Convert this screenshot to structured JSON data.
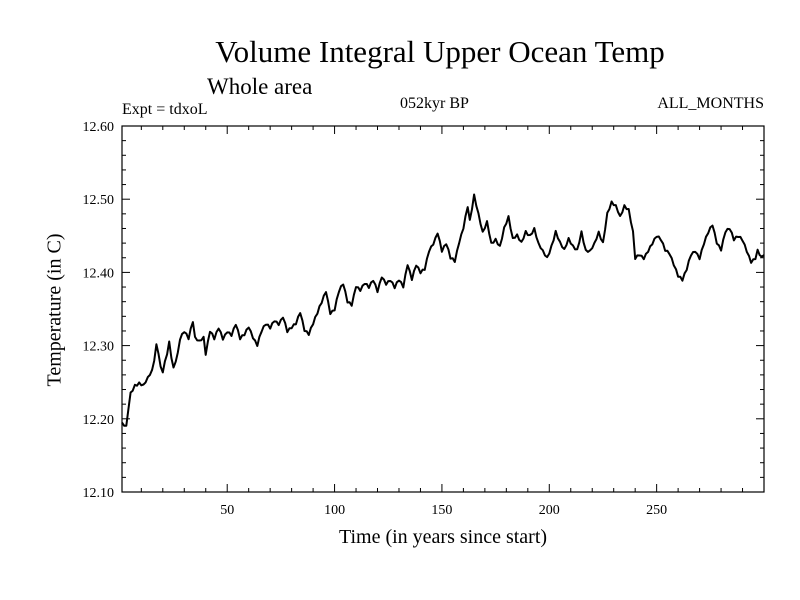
{
  "chart_data": {
    "type": "line",
    "title": "Volume Integral Upper Ocean Temp",
    "subtitle": "Whole area",
    "annotations": {
      "left": "Expt = tdxoL",
      "center": "052kyr BP",
      "right": "ALL_MONTHS"
    },
    "xlabel": "Time (in years since start)",
    "ylabel": "Temperature (in C)",
    "xlim": [
      1,
      300
    ],
    "ylim": [
      12.1,
      12.6
    ],
    "xticks": [
      50,
      100,
      150,
      200,
      250
    ],
    "yticks": [
      "12.10",
      "12.20",
      "12.30",
      "12.40",
      "12.50",
      "12.60"
    ],
    "grid": false,
    "series": [
      {
        "keypoints": [
          [
            1,
            12.195
          ],
          [
            3,
            12.19
          ],
          [
            4,
            12.215
          ],
          [
            5,
            12.235
          ],
          [
            7,
            12.245
          ],
          [
            9,
            12.248
          ],
          [
            11,
            12.245
          ],
          [
            13,
            12.255
          ],
          [
            15,
            12.265
          ],
          [
            16,
            12.28
          ],
          [
            17,
            12.3
          ],
          [
            18,
            12.29
          ],
          [
            19,
            12.27
          ],
          [
            20,
            12.265
          ],
          [
            22,
            12.29
          ],
          [
            23,
            12.305
          ],
          [
            24,
            12.285
          ],
          [
            25,
            12.27
          ],
          [
            27,
            12.29
          ],
          [
            28,
            12.31
          ],
          [
            30,
            12.32
          ],
          [
            32,
            12.31
          ],
          [
            34,
            12.333
          ],
          [
            35,
            12.31
          ],
          [
            37,
            12.305
          ],
          [
            39,
            12.31
          ],
          [
            40,
            12.288
          ],
          [
            42,
            12.32
          ],
          [
            44,
            12.31
          ],
          [
            46,
            12.325
          ],
          [
            48,
            12.31
          ],
          [
            50,
            12.32
          ],
          [
            52,
            12.315
          ],
          [
            54,
            12.33
          ],
          [
            56,
            12.31
          ],
          [
            58,
            12.315
          ],
          [
            60,
            12.325
          ],
          [
            62,
            12.31
          ],
          [
            64,
            12.3
          ],
          [
            66,
            12.32
          ],
          [
            68,
            12.33
          ],
          [
            70,
            12.325
          ],
          [
            72,
            12.335
          ],
          [
            74,
            12.33
          ],
          [
            76,
            12.34
          ],
          [
            78,
            12.32
          ],
          [
            80,
            12.325
          ],
          [
            82,
            12.33
          ],
          [
            84,
            12.345
          ],
          [
            86,
            12.32
          ],
          [
            88,
            12.315
          ],
          [
            90,
            12.33
          ],
          [
            92,
            12.345
          ],
          [
            94,
            12.36
          ],
          [
            96,
            12.375
          ],
          [
            98,
            12.345
          ],
          [
            100,
            12.35
          ],
          [
            102,
            12.375
          ],
          [
            104,
            12.385
          ],
          [
            106,
            12.36
          ],
          [
            108,
            12.355
          ],
          [
            110,
            12.38
          ],
          [
            112,
            12.375
          ],
          [
            114,
            12.385
          ],
          [
            116,
            12.38
          ],
          [
            118,
            12.39
          ],
          [
            120,
            12.375
          ],
          [
            122,
            12.395
          ],
          [
            124,
            12.385
          ],
          [
            126,
            12.39
          ],
          [
            128,
            12.38
          ],
          [
            130,
            12.39
          ],
          [
            132,
            12.38
          ],
          [
            134,
            12.41
          ],
          [
            136,
            12.39
          ],
          [
            138,
            12.41
          ],
          [
            140,
            12.4
          ],
          [
            142,
            12.405
          ],
          [
            144,
            12.43
          ],
          [
            146,
            12.44
          ],
          [
            148,
            12.455
          ],
          [
            150,
            12.43
          ],
          [
            152,
            12.44
          ],
          [
            154,
            12.42
          ],
          [
            156,
            12.415
          ],
          [
            158,
            12.44
          ],
          [
            160,
            12.46
          ],
          [
            162,
            12.49
          ],
          [
            163,
            12.47
          ],
          [
            165,
            12.505
          ],
          [
            167,
            12.48
          ],
          [
            169,
            12.455
          ],
          [
            171,
            12.47
          ],
          [
            173,
            12.44
          ],
          [
            175,
            12.445
          ],
          [
            177,
            12.435
          ],
          [
            179,
            12.46
          ],
          [
            181,
            12.475
          ],
          [
            183,
            12.445
          ],
          [
            185,
            12.45
          ],
          [
            187,
            12.44
          ],
          [
            189,
            12.455
          ],
          [
            191,
            12.45
          ],
          [
            193,
            12.46
          ],
          [
            195,
            12.44
          ],
          [
            197,
            12.43
          ],
          [
            199,
            12.42
          ],
          [
            201,
            12.435
          ],
          [
            203,
            12.455
          ],
          [
            205,
            12.44
          ],
          [
            207,
            12.43
          ],
          [
            209,
            12.445
          ],
          [
            211,
            12.435
          ],
          [
            213,
            12.43
          ],
          [
            215,
            12.455
          ],
          [
            217,
            12.43
          ],
          [
            219,
            12.43
          ],
          [
            221,
            12.44
          ],
          [
            223,
            12.455
          ],
          [
            225,
            12.44
          ],
          [
            227,
            12.48
          ],
          [
            229,
            12.495
          ],
          [
            231,
            12.49
          ],
          [
            233,
            12.475
          ],
          [
            235,
            12.49
          ],
          [
            237,
            12.485
          ],
          [
            239,
            12.455
          ],
          [
            240,
            12.42
          ],
          [
            242,
            12.425
          ],
          [
            244,
            12.42
          ],
          [
            246,
            12.43
          ],
          [
            248,
            12.44
          ],
          [
            250,
            12.45
          ],
          [
            252,
            12.445
          ],
          [
            254,
            12.43
          ],
          [
            256,
            12.425
          ],
          [
            258,
            12.41
          ],
          [
            260,
            12.395
          ],
          [
            262,
            12.39
          ],
          [
            264,
            12.405
          ],
          [
            266,
            12.425
          ],
          [
            268,
            12.43
          ],
          [
            270,
            12.42
          ],
          [
            272,
            12.44
          ],
          [
            274,
            12.455
          ],
          [
            276,
            12.465
          ],
          [
            278,
            12.44
          ],
          [
            280,
            12.43
          ],
          [
            282,
            12.455
          ],
          [
            284,
            12.46
          ],
          [
            286,
            12.445
          ],
          [
            288,
            12.45
          ],
          [
            290,
            12.445
          ],
          [
            292,
            12.43
          ],
          [
            294,
            12.415
          ],
          [
            296,
            12.42
          ],
          [
            297,
            12.43
          ],
          [
            299,
            12.42
          ],
          [
            300,
            12.425
          ]
        ],
        "color": "#000000"
      }
    ]
  }
}
